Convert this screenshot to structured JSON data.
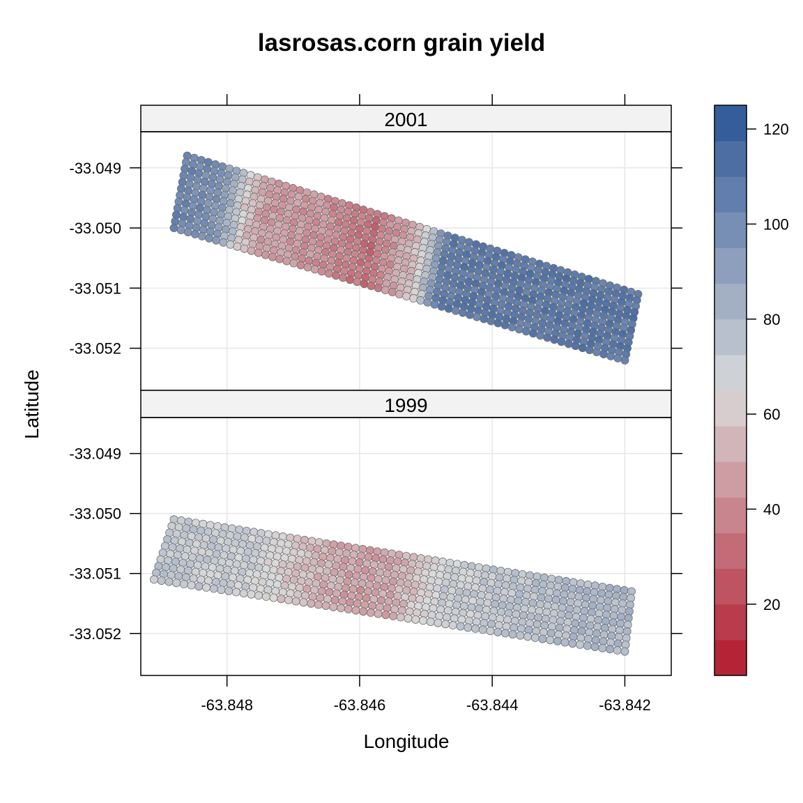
{
  "chart_data": {
    "type": "scatter",
    "title": "lasrosas.corn grain yield",
    "xlabel": "Longitude",
    "ylabel": "Latitude",
    "xlim": [
      -63.8493,
      -63.8413
    ],
    "ylim": [
      -33.0527,
      -33.0484
    ],
    "x_ticks": [
      -63.848,
      -63.846,
      -63.844,
      -63.842
    ],
    "x_tick_labels": [
      "-63.848",
      "-63.846",
      "-63.844",
      "-63.842"
    ],
    "y_ticks": [
      -33.049,
      -33.05,
      -33.051,
      -33.052
    ],
    "y_tick_labels": [
      "-33.049",
      "-33.050",
      "-33.051",
      "-33.052"
    ],
    "grid": true,
    "colorkey": {
      "placement": "right",
      "range": [
        5,
        125
      ],
      "ticks": [
        20,
        40,
        60,
        80,
        100,
        120
      ],
      "tick_labels": [
        "20",
        "40",
        "60",
        "80",
        "100",
        "120"
      ],
      "low_color": "#B2182B",
      "mid_color": "#D9D9D9",
      "high_color": "#2B5597"
    },
    "panels": [
      {
        "strip_label": "2001",
        "field_corners": [
          [
            -63.8486,
            -33.0488
          ],
          [
            -63.8418,
            -33.0511
          ],
          [
            -63.842,
            -33.0522
          ],
          [
            -63.8488,
            -33.05
          ]
        ],
        "yield_profile": [
          {
            "t": 0.0,
            "yield": 105
          },
          {
            "t": 0.08,
            "yield": 100
          },
          {
            "t": 0.12,
            "yield": 80
          },
          {
            "t": 0.14,
            "yield": 62
          },
          {
            "t": 0.18,
            "yield": 45
          },
          {
            "t": 0.3,
            "yield": 42
          },
          {
            "t": 0.38,
            "yield": 35
          },
          {
            "t": 0.42,
            "yield": 30
          },
          {
            "t": 0.48,
            "yield": 45
          },
          {
            "t": 0.52,
            "yield": 58
          },
          {
            "t": 0.55,
            "yield": 80
          },
          {
            "t": 0.58,
            "yield": 110
          },
          {
            "t": 1.0,
            "yield": 112
          }
        ]
      },
      {
        "strip_label": "1999",
        "field_corners": [
          [
            -63.8488,
            -33.0501
          ],
          [
            -63.8419,
            -33.0513
          ],
          [
            -63.842,
            -33.0523
          ],
          [
            -63.8491,
            -33.0511
          ]
        ],
        "yield_profile": [
          {
            "t": 0.0,
            "yield": 75
          },
          {
            "t": 0.2,
            "yield": 70
          },
          {
            "t": 0.3,
            "yield": 55
          },
          {
            "t": 0.42,
            "yield": 45
          },
          {
            "t": 0.5,
            "yield": 50
          },
          {
            "t": 0.6,
            "yield": 70
          },
          {
            "t": 0.8,
            "yield": 78
          },
          {
            "t": 1.0,
            "yield": 82
          }
        ]
      }
    ]
  }
}
